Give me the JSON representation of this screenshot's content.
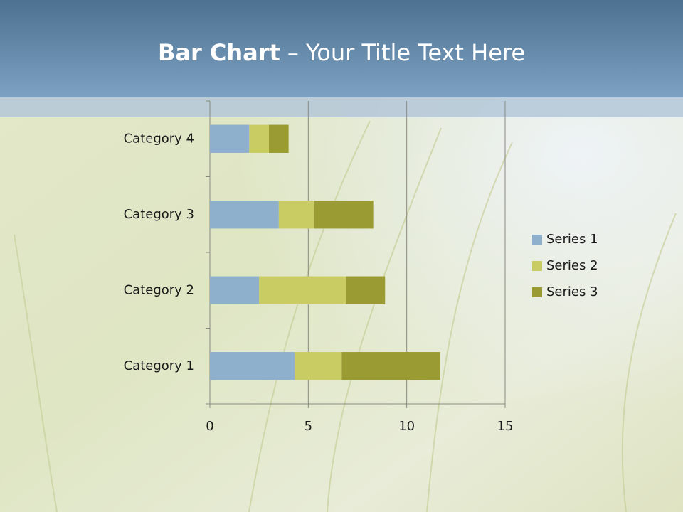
{
  "chart_data": {
    "type": "bar",
    "orientation": "horizontal",
    "stacked": true,
    "title": {
      "bold": "Bar Chart",
      "rest": "– Your Title Text Here"
    },
    "categories": [
      "Category 1",
      "Category 2",
      "Category 3",
      "Category 4"
    ],
    "series": [
      {
        "name": "Series 1",
        "color": "#8eb0cc",
        "values": [
          4.3,
          2.5,
          3.5,
          2
        ]
      },
      {
        "name": "Series 2",
        "color": "#c9cc63",
        "values": [
          2.4,
          4.4,
          1.8,
          1
        ]
      },
      {
        "name": "Series 3",
        "color": "#9a9b33",
        "values": [
          5,
          2,
          3,
          1
        ]
      }
    ],
    "xlim": [
      0,
      15
    ],
    "xticks": [
      0,
      5,
      10,
      15
    ],
    "grid": true,
    "legend": "right"
  }
}
